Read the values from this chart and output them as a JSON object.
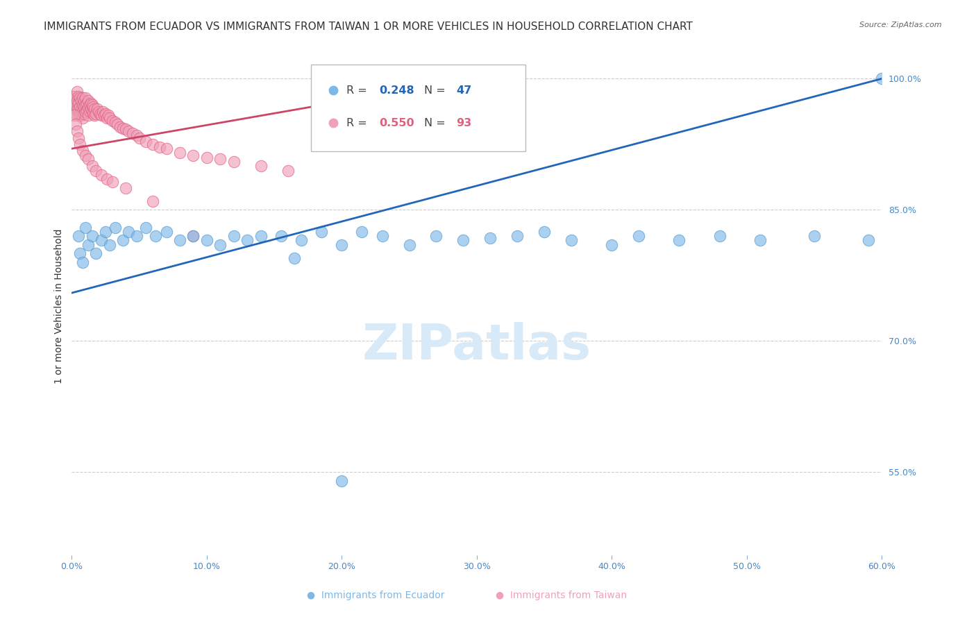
{
  "title": "IMMIGRANTS FROM ECUADOR VS IMMIGRANTS FROM TAIWAN 1 OR MORE VEHICLES IN HOUSEHOLD CORRELATION CHART",
  "source": "Source: ZipAtlas.com",
  "ylabel": "1 or more Vehicles in Household",
  "x_min": 0.0,
  "x_max": 0.6,
  "y_min": 0.455,
  "y_max": 1.025,
  "right_yticks": [
    0.55,
    0.7,
    0.85,
    1.0
  ],
  "right_yticklabels": [
    "55.0%",
    "70.0%",
    "85.0%",
    "100.0%"
  ],
  "xticks": [
    0.0,
    0.1,
    0.2,
    0.3,
    0.4,
    0.5,
    0.6
  ],
  "xticklabels": [
    "0.0%",
    "10.0%",
    "20.0%",
    "30.0%",
    "40.0%",
    "50.0%",
    "60.0%"
  ],
  "ecuador_color": "#7eb8e8",
  "taiwan_color": "#f0a0b8",
  "ecuador_edge_color": "#5599cc",
  "taiwan_edge_color": "#e06080",
  "ecuador_line_color": "#2266bb",
  "taiwan_line_color": "#cc4466",
  "ecuador_R": 0.248,
  "ecuador_N": 47,
  "taiwan_R": 0.55,
  "taiwan_N": 93,
  "ecuador_x": [
    0.005,
    0.006,
    0.008,
    0.01,
    0.012,
    0.015,
    0.018,
    0.022,
    0.025,
    0.028,
    0.032,
    0.038,
    0.042,
    0.048,
    0.055,
    0.062,
    0.07,
    0.08,
    0.09,
    0.1,
    0.11,
    0.12,
    0.13,
    0.14,
    0.155,
    0.17,
    0.185,
    0.2,
    0.215,
    0.23,
    0.25,
    0.27,
    0.29,
    0.31,
    0.33,
    0.35,
    0.37,
    0.4,
    0.42,
    0.45,
    0.48,
    0.51,
    0.55,
    0.59,
    0.6,
    0.165,
    0.2
  ],
  "ecuador_y": [
    0.82,
    0.8,
    0.79,
    0.83,
    0.81,
    0.82,
    0.8,
    0.815,
    0.825,
    0.81,
    0.83,
    0.815,
    0.825,
    0.82,
    0.83,
    0.82,
    0.825,
    0.815,
    0.82,
    0.815,
    0.81,
    0.82,
    0.815,
    0.82,
    0.82,
    0.815,
    0.825,
    0.81,
    0.825,
    0.82,
    0.81,
    0.82,
    0.815,
    0.818,
    0.82,
    0.825,
    0.815,
    0.81,
    0.82,
    0.815,
    0.82,
    0.815,
    0.82,
    0.815,
    1.0,
    0.795,
    0.54
  ],
  "taiwan_x": [
    0.001,
    0.001,
    0.002,
    0.002,
    0.003,
    0.003,
    0.003,
    0.004,
    0.004,
    0.004,
    0.005,
    0.005,
    0.005,
    0.005,
    0.006,
    0.006,
    0.006,
    0.007,
    0.007,
    0.007,
    0.008,
    0.008,
    0.008,
    0.008,
    0.009,
    0.009,
    0.009,
    0.01,
    0.01,
    0.01,
    0.011,
    0.011,
    0.012,
    0.012,
    0.012,
    0.013,
    0.013,
    0.014,
    0.014,
    0.015,
    0.015,
    0.016,
    0.016,
    0.017,
    0.017,
    0.018,
    0.019,
    0.02,
    0.021,
    0.022,
    0.023,
    0.024,
    0.025,
    0.026,
    0.027,
    0.028,
    0.03,
    0.032,
    0.034,
    0.036,
    0.038,
    0.04,
    0.042,
    0.045,
    0.048,
    0.05,
    0.055,
    0.06,
    0.065,
    0.07,
    0.08,
    0.09,
    0.1,
    0.11,
    0.12,
    0.14,
    0.16,
    0.002,
    0.003,
    0.004,
    0.005,
    0.006,
    0.008,
    0.01,
    0.012,
    0.015,
    0.018,
    0.022,
    0.026,
    0.03,
    0.04,
    0.06,
    0.09
  ],
  "taiwan_y": [
    0.98,
    0.97,
    0.975,
    0.965,
    0.98,
    0.97,
    0.96,
    0.985,
    0.975,
    0.965,
    0.98,
    0.972,
    0.965,
    0.958,
    0.978,
    0.968,
    0.96,
    0.975,
    0.965,
    0.958,
    0.978,
    0.97,
    0.962,
    0.955,
    0.975,
    0.968,
    0.96,
    0.978,
    0.97,
    0.962,
    0.972,
    0.964,
    0.975,
    0.967,
    0.958,
    0.97,
    0.963,
    0.972,
    0.965,
    0.97,
    0.963,
    0.968,
    0.96,
    0.965,
    0.958,
    0.96,
    0.965,
    0.962,
    0.96,
    0.958,
    0.962,
    0.958,
    0.96,
    0.955,
    0.958,
    0.955,
    0.952,
    0.95,
    0.948,
    0.945,
    0.943,
    0.942,
    0.94,
    0.938,
    0.935,
    0.932,
    0.928,
    0.925,
    0.922,
    0.92,
    0.915,
    0.912,
    0.91,
    0.908,
    0.905,
    0.9,
    0.895,
    0.958,
    0.948,
    0.94,
    0.932,
    0.925,
    0.918,
    0.912,
    0.908,
    0.9,
    0.895,
    0.89,
    0.885,
    0.882,
    0.875,
    0.86,
    0.82
  ],
  "ecuador_line_x": [
    0.0,
    0.6
  ],
  "ecuador_line_y": [
    0.755,
    1.0
  ],
  "taiwan_line_x": [
    0.0,
    0.26
  ],
  "taiwan_line_y": [
    0.92,
    0.99
  ],
  "watermark_text": "ZIPatlas",
  "watermark_color": "#d8eaf8",
  "background_color": "#ffffff",
  "grid_color": "#cccccc",
  "title_color": "#333333",
  "axis_label_color": "#4488cc",
  "title_fontsize": 11,
  "ylabel_fontsize": 10,
  "tick_fontsize": 9,
  "legend_R1_label": "R = ",
  "legend_R1_val": "0.248",
  "legend_N1_label": "N = ",
  "legend_N1_val": "47",
  "legend_R2_label": "R = ",
  "legend_R2_val": "0.550",
  "legend_N2_label": "N = ",
  "legend_N2_val": "93"
}
